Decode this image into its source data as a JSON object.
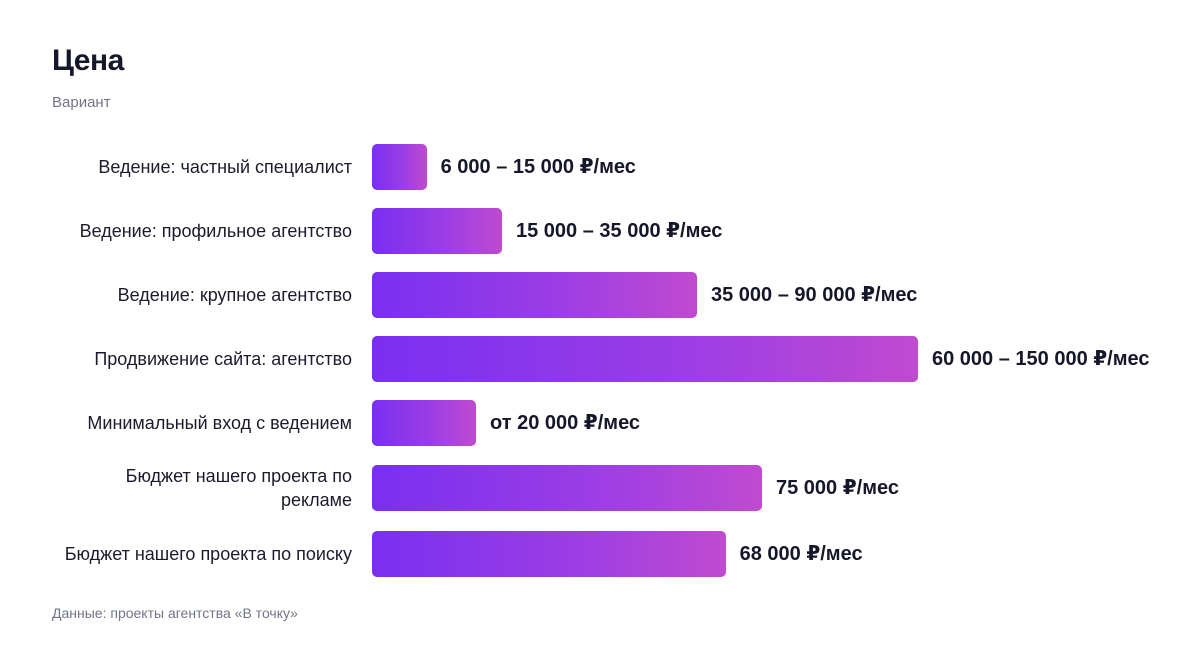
{
  "header": {
    "title": "Цена",
    "subtitle": "Вариант"
  },
  "footer": {
    "source": "Данные: проекты агентства «В точку»"
  },
  "colors": {
    "bar_start": "#7a2ff0",
    "bar_end": "#c04ad0",
    "text": "#17172b",
    "muted": "#72758a"
  },
  "chart_data": {
    "type": "bar",
    "orientation": "horizontal",
    "title": "Цена",
    "subtitle": "Вариант",
    "categories": [
      "Ведение: частный специалист",
      "Ведение: профильное агентство",
      "Ведение: крупное агентство",
      "Продвижение сайта: агентство",
      "Минимальный вход с ведением",
      "Бюджет нашего проекта по рекламе",
      "Бюджет нашего проекта по поиску"
    ],
    "values": [
      10500,
      25000,
      62500,
      105000,
      20000,
      75000,
      68000
    ],
    "value_labels": [
      "6 000 – 15 000 ₽/мес",
      "15 000 – 35 000 ₽/мес",
      "35 000 – 90 000 ₽/мес",
      "60 000 – 150 000 ₽/мес",
      "от 20 000 ₽/мес",
      "75 000 ₽/мес",
      "68 000 ₽/мес"
    ],
    "xlim": [
      0,
      120000
    ],
    "grid": false,
    "legend": "none"
  }
}
